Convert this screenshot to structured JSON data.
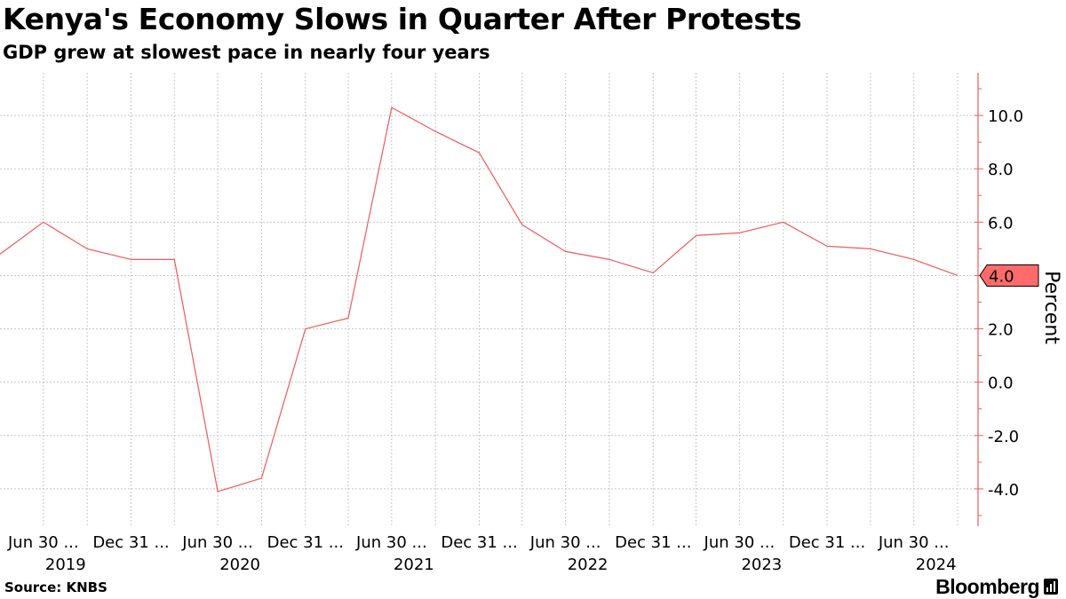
{
  "header": {
    "title": "Kenya's Economy Slows in Quarter After Protests",
    "subtitle": "GDP grew at slowest pace in nearly four years"
  },
  "footer": {
    "source": "Source: KNBS",
    "brand": "Bloomberg"
  },
  "colors": {
    "line": "#f15a5a",
    "axis": "#f15a5a",
    "grid": "#c8c8c8",
    "last_value_fill": "#ff6b6b"
  },
  "chart_data": {
    "type": "line",
    "title": "Kenya's Economy Slows in Quarter After Protests",
    "subtitle": "GDP grew at slowest pace in nearly four years",
    "ylabel": "Percent",
    "xlabel": "",
    "ylim": [
      -5.4,
      11.6
    ],
    "yticks": [
      -4.0,
      -2.0,
      0.0,
      2.0,
      4.0,
      6.0,
      8.0,
      10.0
    ],
    "ytick_labels": [
      "-4.0",
      "-2.0",
      "0.0",
      "2.0",
      "4.0",
      "6.0",
      "8.0",
      "10.0"
    ],
    "grid": true,
    "y_axis_side": "right",
    "x": [
      "2019-03-31",
      "2019-06-30",
      "2019-09-30",
      "2019-12-31",
      "2020-03-31",
      "2020-06-30",
      "2020-09-30",
      "2020-12-31",
      "2021-03-31",
      "2021-06-30",
      "2021-09-30",
      "2021-12-31",
      "2022-03-31",
      "2022-06-30",
      "2022-09-30",
      "2022-12-31",
      "2023-03-31",
      "2023-06-30",
      "2023-09-30",
      "2023-12-31",
      "2024-03-31",
      "2024-06-30",
      "2024-09-30"
    ],
    "series": [
      {
        "name": "",
        "values": [
          4.8,
          6.0,
          5.0,
          4.6,
          4.6,
          -4.1,
          -3.6,
          2.0,
          2.4,
          10.3,
          9.4,
          8.6,
          5.9,
          4.9,
          4.6,
          4.1,
          5.5,
          5.6,
          6.0,
          5.1,
          5.0,
          4.6,
          4.0
        ]
      }
    ],
    "last_value_label": "4.0",
    "x_ticks": [
      {
        "date": "2019-06-30",
        "label": "Jun 30 ...",
        "year": "2019"
      },
      {
        "date": "2019-12-31",
        "label": "Dec 31 ...",
        "year": ""
      },
      {
        "date": "2020-06-30",
        "label": "Jun 30 ...",
        "year": "2020"
      },
      {
        "date": "2020-12-31",
        "label": "Dec 31 ...",
        "year": ""
      },
      {
        "date": "2021-06-30",
        "label": "Jun 30 ...",
        "year": "2021"
      },
      {
        "date": "2021-12-31",
        "label": "Dec 31 ...",
        "year": ""
      },
      {
        "date": "2022-06-30",
        "label": "Jun 30 ...",
        "year": "2022"
      },
      {
        "date": "2022-12-31",
        "label": "Dec 31 ...",
        "year": ""
      },
      {
        "date": "2023-06-30",
        "label": "Jun 30 ...",
        "year": "2023"
      },
      {
        "date": "2023-12-31",
        "label": "Dec 31 ...",
        "year": ""
      },
      {
        "date": "2024-06-30",
        "label": "Jun 30 ...",
        "year": "2024"
      }
    ]
  }
}
